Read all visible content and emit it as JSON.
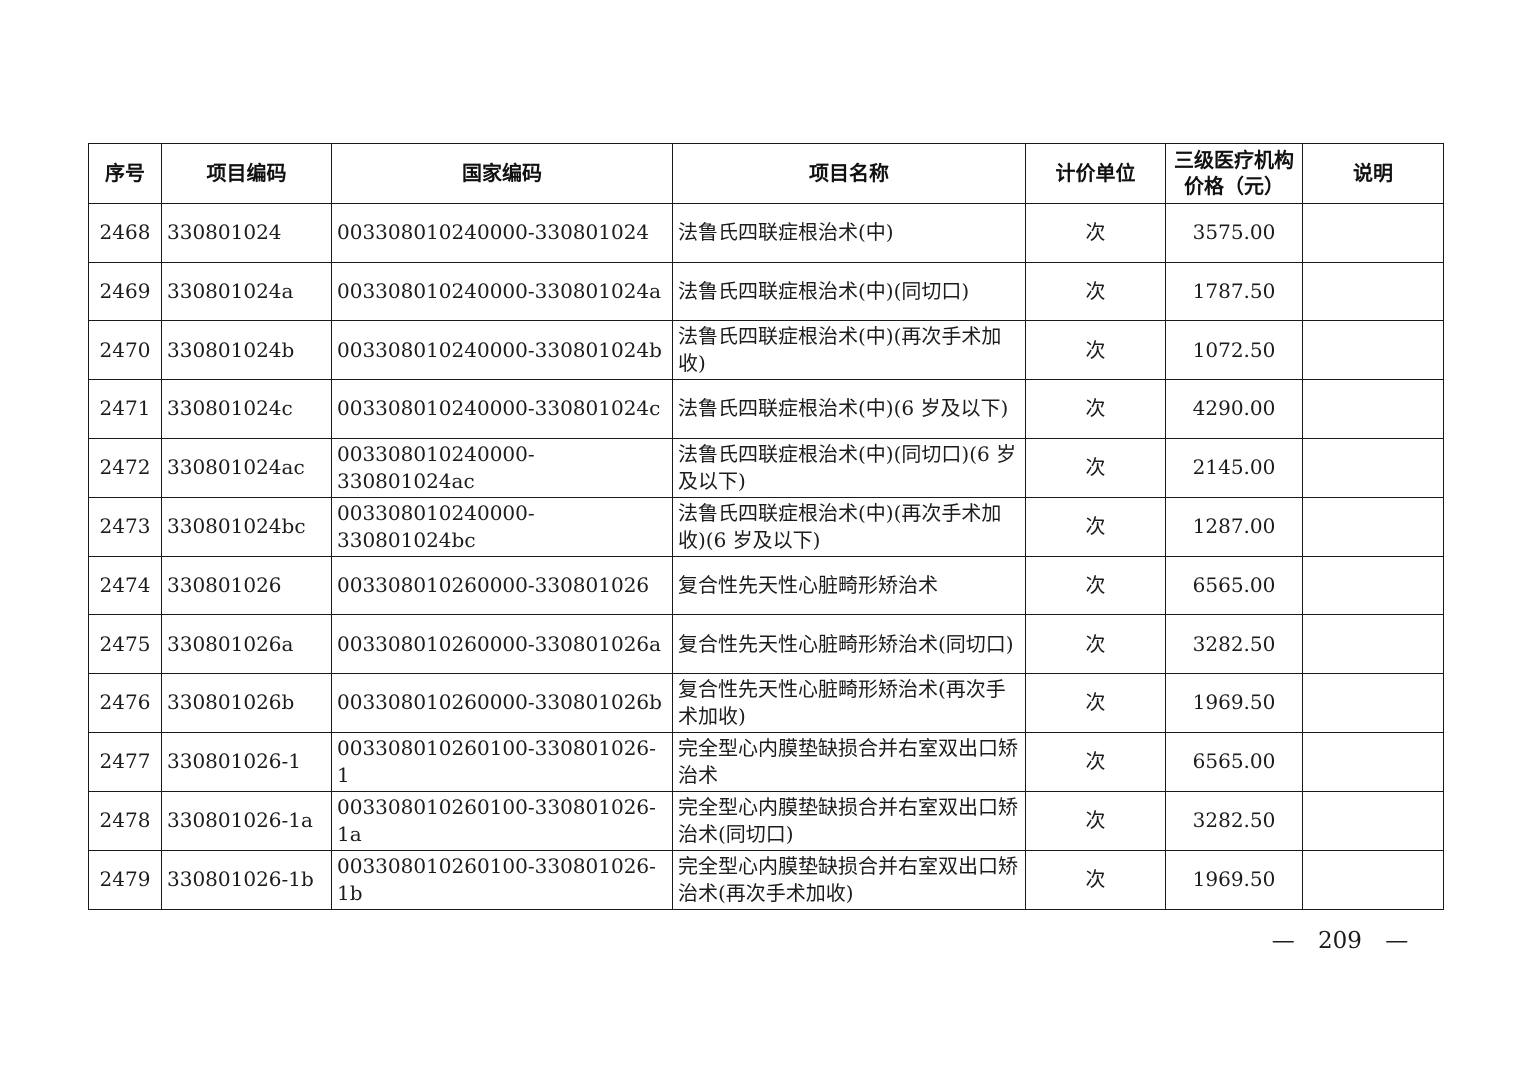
{
  "page": {
    "number_label": "— 209 —"
  },
  "table": {
    "headers": [
      "序号",
      "项目编码",
      "国家编码",
      "项目名称",
      "计价单位",
      "三级医疗机构价格（元）",
      "说明"
    ],
    "rows": [
      {
        "seq": "2468",
        "item_code": "330801024",
        "national_code": "003308010240000-330801024",
        "name": "法鲁氏四联症根治术(中)",
        "unit": "次",
        "price": "3575.00",
        "note": ""
      },
      {
        "seq": "2469",
        "item_code": "330801024a",
        "national_code": "003308010240000-330801024a",
        "name": "法鲁氏四联症根治术(中)(同切口)",
        "unit": "次",
        "price": "1787.50",
        "note": ""
      },
      {
        "seq": "2470",
        "item_code": "330801024b",
        "national_code": "003308010240000-330801024b",
        "name": "法鲁氏四联症根治术(中)(再次手术加收)",
        "unit": "次",
        "price": "1072.50",
        "note": ""
      },
      {
        "seq": "2471",
        "item_code": "330801024c",
        "national_code": "003308010240000-330801024c",
        "name": "法鲁氏四联症根治术(中)(6 岁及以下)",
        "unit": "次",
        "price": "4290.00",
        "note": ""
      },
      {
        "seq": "2472",
        "item_code": "330801024ac",
        "national_code": "003308010240000-330801024ac",
        "name": "法鲁氏四联症根治术(中)(同切口)(6 岁及以下)",
        "unit": "次",
        "price": "2145.00",
        "note": ""
      },
      {
        "seq": "2473",
        "item_code": "330801024bc",
        "national_code": "003308010240000-330801024bc",
        "name": "法鲁氏四联症根治术(中)(再次手术加收)(6 岁及以下)",
        "unit": "次",
        "price": "1287.00",
        "note": ""
      },
      {
        "seq": "2474",
        "item_code": "330801026",
        "national_code": "003308010260000-330801026",
        "name": "复合性先天性心脏畸形矫治术",
        "unit": "次",
        "price": "6565.00",
        "note": ""
      },
      {
        "seq": "2475",
        "item_code": "330801026a",
        "national_code": "003308010260000-330801026a",
        "name": "复合性先天性心脏畸形矫治术(同切口)",
        "unit": "次",
        "price": "3282.50",
        "note": ""
      },
      {
        "seq": "2476",
        "item_code": "330801026b",
        "national_code": "003308010260000-330801026b",
        "name": "复合性先天性心脏畸形矫治术(再次手术加收)",
        "unit": "次",
        "price": "1969.50",
        "note": ""
      },
      {
        "seq": "2477",
        "item_code": "330801026-1",
        "national_code": "003308010260100-330801026-1",
        "name": "完全型心内膜垫缺损合并右室双出口矫治术",
        "unit": "次",
        "price": "6565.00",
        "note": ""
      },
      {
        "seq": "2478",
        "item_code": "330801026-1a",
        "national_code": "003308010260100-330801026-1a",
        "name": "完全型心内膜垫缺损合并右室双出口矫治术(同切口)",
        "unit": "次",
        "price": "3282.50",
        "note": ""
      },
      {
        "seq": "2479",
        "item_code": "330801026-1b",
        "national_code": "003308010260100-330801026-1b",
        "name": "完全型心内膜垫缺损合并右室双出口矫治术(再次手术加收)",
        "unit": "次",
        "price": "1969.50",
        "note": ""
      }
    ]
  }
}
